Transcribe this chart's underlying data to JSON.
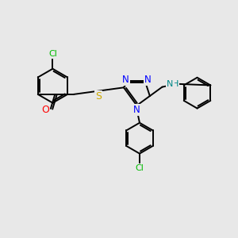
{
  "bg_color": "#e8e8e8",
  "bond_color": "#000000",
  "bond_width": 1.4,
  "atom_colors": {
    "Cl": "#00bb00",
    "O": "#ff0000",
    "S": "#ccaa00",
    "N": "#0000ff",
    "NH": "#008888"
  }
}
